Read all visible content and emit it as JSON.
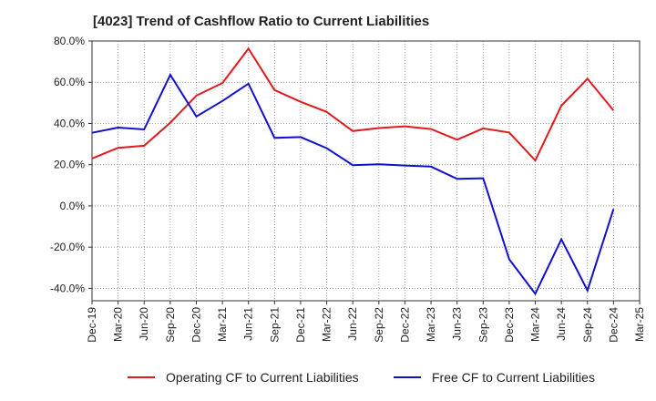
{
  "chart_data": {
    "type": "line",
    "title": "[4023]  Trend of Cashflow Ratio to Current Liabilities",
    "xlabel": "",
    "ylabel": "",
    "categories": [
      "Dec-19",
      "Mar-20",
      "Jun-20",
      "Sep-20",
      "Dec-20",
      "Mar-21",
      "Jun-21",
      "Sep-21",
      "Dec-21",
      "Mar-22",
      "Jun-22",
      "Sep-22",
      "Dec-22",
      "Mar-23",
      "Jun-23",
      "Sep-23",
      "Dec-23",
      "Mar-24",
      "Jun-24",
      "Sep-24",
      "Dec-24",
      "Mar-25"
    ],
    "ylim": [
      -46,
      80
    ],
    "yticks": [
      80,
      60,
      40,
      20,
      0,
      -20,
      -40
    ],
    "ytick_labels": [
      "80.0%",
      "60.0%",
      "40.0%",
      "20.0%",
      "0.0%",
      "-20.0%",
      "-40.0%"
    ],
    "grid": true,
    "legend_position": "bottom",
    "series": [
      {
        "name": "Operating CF to Current Liabilities",
        "color": "#e31a1c",
        "values": [
          23.0,
          28.2,
          29.2,
          40.4,
          53.5,
          59.6,
          76.3,
          56.2,
          50.5,
          45.6,
          36.3,
          37.8,
          38.6,
          37.3,
          32.1,
          37.6,
          35.6,
          22.1,
          48.6,
          61.7,
          46.3,
          null
        ]
      },
      {
        "name": "Free CF to Current Liabilities",
        "color": "#1010d0",
        "values": [
          35.5,
          38.0,
          37.1,
          63.6,
          43.4,
          50.9,
          59.3,
          33.0,
          33.4,
          28.0,
          19.8,
          20.2,
          19.6,
          19.1,
          13.1,
          13.4,
          -25.9,
          -42.6,
          -16.2,
          -41.0,
          -1.5,
          null
        ]
      }
    ]
  }
}
